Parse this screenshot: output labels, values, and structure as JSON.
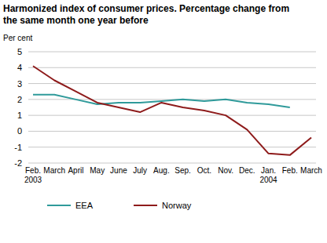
{
  "chart_data": {
    "type": "line",
    "title": "Harmonized index of consumer prices. Percentage change from\nthe same month one year before",
    "y_label": "Per cent",
    "categories": [
      "Feb.\n2003",
      "March",
      "April",
      "May",
      "June",
      "July",
      "Aug.",
      "Sep.",
      "Oct.",
      "Nov.",
      "Dec.",
      "Jan.\n2004",
      "Feb.",
      "March"
    ],
    "series": [
      {
        "name": "EEA",
        "color": "#2f9a9a",
        "values": [
          2.3,
          2.3,
          2.0,
          1.7,
          1.8,
          1.8,
          1.9,
          2.0,
          1.9,
          2.0,
          1.8,
          1.7,
          1.5,
          null
        ]
      },
      {
        "name": "Norway",
        "color": "#8e1b1b",
        "values": [
          4.1,
          3.2,
          2.5,
          1.8,
          1.5,
          1.2,
          1.8,
          1.5,
          1.3,
          1.0,
          0.1,
          -1.4,
          -1.5,
          -0.4
        ]
      }
    ],
    "ylim": [
      -2,
      5
    ],
    "yticks": [
      -2,
      -1,
      0,
      1,
      2,
      3,
      4,
      5
    ],
    "grid": true,
    "legend": "bottom"
  }
}
